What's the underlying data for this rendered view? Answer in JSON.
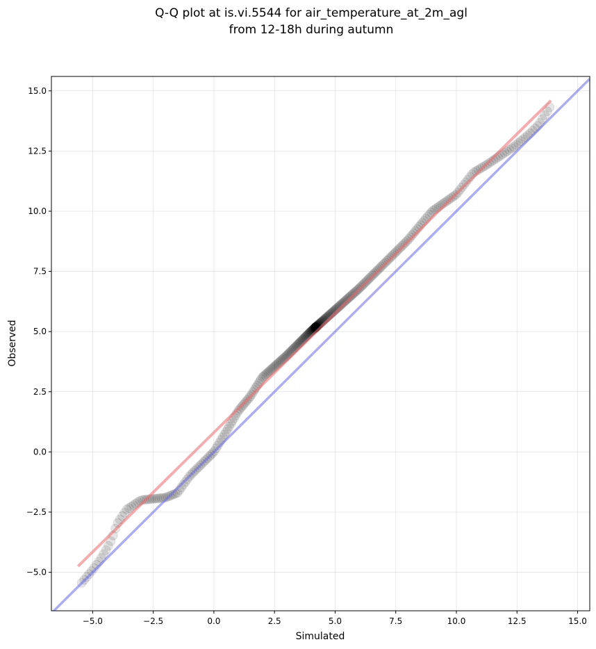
{
  "chart_data": {
    "type": "scatter",
    "title": [
      "Q-Q plot at is.vi.5544 for air_temperature_at_2m_agl",
      "from 12-18h during autumn"
    ],
    "xlabel": "Simulated",
    "ylabel": "Observed",
    "xlim": [
      -6.7,
      15.5
    ],
    "ylim": [
      -6.6,
      15.6
    ],
    "grid": true,
    "x_ticks": [
      -5.0,
      -2.5,
      0.0,
      2.5,
      5.0,
      7.5,
      10.0,
      12.5,
      15.0
    ],
    "y_ticks": [
      -5.0,
      -2.5,
      0.0,
      2.5,
      5.0,
      7.5,
      10.0,
      12.5,
      15.0
    ],
    "x_tick_labels": [
      "−5.0",
      "−2.5",
      "0.0",
      "2.5",
      "5.0",
      "7.5",
      "10.0",
      "12.5",
      "15.0"
    ],
    "y_tick_labels": [
      "−5.0",
      "−2.5",
      "0.0",
      "2.5",
      "5.0",
      "7.5",
      "10.0",
      "12.5",
      "15.0"
    ],
    "colors": {
      "points": "#000000",
      "fit_line": "#f0686c",
      "identity_line": "#6a6af0"
    },
    "fit_line": {
      "x": [
        -5.6,
        13.9
      ],
      "y": [
        -4.75,
        14.6
      ]
    },
    "identity_line": {
      "x": [
        -6.7,
        15.5
      ],
      "y": [
        -6.7,
        15.5
      ]
    },
    "quantile_knots": {
      "x": [
        -5.5,
        -5.0,
        -4.7,
        -4.4,
        -4.2,
        -4.0,
        -3.6,
        -3.0,
        -2.0,
        -1.5,
        -1.0,
        0.0,
        0.6,
        1.0,
        1.5,
        2.0,
        3.0,
        4.0,
        5.0,
        6.0,
        7.0,
        8.0,
        9.0,
        10.0,
        10.7,
        11.2,
        12.4,
        13.0,
        13.4,
        13.9
      ],
      "y": [
        -5.5,
        -4.9,
        -4.5,
        -4.0,
        -3.6,
        -3.0,
        -2.4,
        -2.0,
        -1.9,
        -1.7,
        -1.0,
        0.0,
        1.0,
        1.7,
        2.3,
        3.1,
        4.0,
        5.0,
        5.9,
        6.8,
        7.8,
        8.8,
        10.0,
        10.7,
        11.6,
        11.9,
        12.7,
        13.2,
        13.6,
        14.4
      ]
    },
    "n_points": 340
  }
}
